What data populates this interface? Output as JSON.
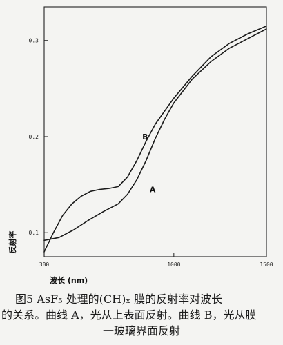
{
  "chart_data": {
    "type": "line",
    "ylabel": "反射率",
    "xlabel": "波长 (nm)",
    "x_ticks": [
      300,
      1000,
      1500
    ],
    "x_tick_labels": [
      "300",
      "1000",
      "1500"
    ],
    "y_ticks": [
      0.1,
      0.2,
      0.3
    ],
    "y_tick_labels": [
      "0.1",
      "0.2",
      "0.3"
    ],
    "xlim": [
      300,
      1500
    ],
    "ylim": [
      0.075,
      0.335
    ],
    "grid": false,
    "series": [
      {
        "name": "A",
        "x": [
          300,
          380,
          460,
          540,
          620,
          700,
          750,
          800,
          850,
          900,
          950,
          1000,
          1100,
          1200,
          1300,
          1400,
          1500
        ],
        "y": [
          0.092,
          0.095,
          0.103,
          0.113,
          0.122,
          0.13,
          0.14,
          0.155,
          0.175,
          0.198,
          0.218,
          0.235,
          0.26,
          0.278,
          0.292,
          0.302,
          0.312
        ]
      },
      {
        "name": "B",
        "x": [
          300,
          350,
          400,
          450,
          500,
          550,
          600,
          650,
          700,
          750,
          800,
          850,
          900,
          1000,
          1100,
          1200,
          1300,
          1400,
          1500
        ],
        "y": [
          0.08,
          0.1,
          0.118,
          0.13,
          0.138,
          0.143,
          0.145,
          0.146,
          0.148,
          0.158,
          0.175,
          0.195,
          0.213,
          0.24,
          0.263,
          0.283,
          0.297,
          0.307,
          0.315
        ]
      }
    ]
  },
  "caption": {
    "line1": "图5  AsF₅ 处理的(CH)ₓ 膜的反射率对波长",
    "line2": "的关系。曲线 A，光从上表面反射。曲线 B，光从膜",
    "line3": "一玻璃界面反射"
  }
}
